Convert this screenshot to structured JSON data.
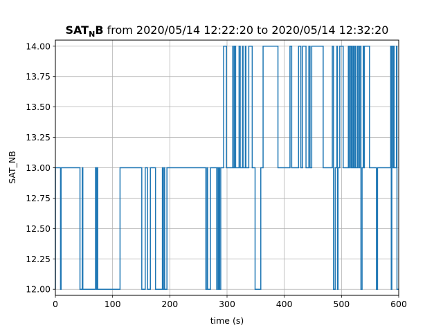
{
  "chart_data": {
    "type": "line",
    "drawstyle": "steps",
    "title": {
      "var_main": "SAT",
      "var_sub": "N",
      "var_tail": "B",
      "rest": " from 2020/05/14 12:22:20 to 2020/05/14 12:32:20"
    },
    "xlabel": "time (s)",
    "ylabel": "SAT_NB",
    "xlim": [
      0,
      600
    ],
    "ylim": [
      11.95,
      14.05
    ],
    "grid": true,
    "line_color": "#1f77b4",
    "xticks": [
      {
        "value": 0,
        "label": "0"
      },
      {
        "value": 100,
        "label": "100"
      },
      {
        "value": 200,
        "label": "200"
      },
      {
        "value": 300,
        "label": "300"
      },
      {
        "value": 400,
        "label": "400"
      },
      {
        "value": 500,
        "label": "500"
      },
      {
        "value": 600,
        "label": "600"
      }
    ],
    "yticks": [
      {
        "value": 12.0,
        "label": "12.00"
      },
      {
        "value": 12.25,
        "label": "12.25"
      },
      {
        "value": 12.5,
        "label": "12.50"
      },
      {
        "value": 12.75,
        "label": "12.75"
      },
      {
        "value": 13.0,
        "label": "13.00"
      },
      {
        "value": 13.25,
        "label": "13.25"
      },
      {
        "value": 13.5,
        "label": "13.50"
      },
      {
        "value": 13.75,
        "label": "13.75"
      },
      {
        "value": 14.0,
        "label": "14.00"
      }
    ],
    "series": [
      {
        "x": [
          0,
          9,
          10,
          43,
          47,
          48,
          70,
          72,
          73,
          74,
          108,
          113,
          151,
          157,
          161,
          166,
          175,
          187,
          188,
          190,
          191,
          194,
          195,
          263,
          265,
          266,
          267,
          271,
          282,
          283,
          285,
          286,
          287,
          289,
          294,
          299,
          310,
          311,
          313,
          315,
          321,
          323,
          327,
          328,
          332,
          333,
          338,
          344,
          348,
          349,
          359,
          360,
          362,
          363,
          389,
          410,
          413,
          425,
          429,
          432,
          438,
          443,
          445,
          448,
          456,
          458,
          468,
          484,
          486,
          489,
          492,
          493,
          494,
          497,
          498,
          503,
          512,
          514,
          515,
          517,
          518,
          519,
          521,
          522,
          524,
          525,
          528,
          530,
          532,
          534,
          536,
          538,
          539,
          540,
          541,
          542,
          549,
          550,
          561,
          563,
          564,
          586,
          587,
          588,
          590,
          591,
          592,
          596,
          597,
          600
        ],
        "y": [
          12,
          13,
          12,
          13,
          12,
          13,
          12,
          13,
          12,
          13,
          12,
          12,
          13,
          12,
          13,
          12,
          13,
          12,
          13,
          12,
          13,
          12,
          12,
          13,
          12,
          13,
          12,
          12,
          13,
          12,
          13,
          12,
          13,
          12,
          13,
          14,
          13,
          14,
          13,
          14,
          13,
          14,
          13,
          14,
          13,
          14,
          13,
          14,
          13,
          13,
          12,
          13,
          13,
          13,
          14,
          13,
          14,
          13,
          14,
          13,
          14,
          13,
          14,
          13,
          14,
          14,
          14,
          13,
          14,
          12,
          13,
          14,
          12,
          13,
          14,
          14,
          13,
          14,
          13,
          14,
          13,
          14,
          13,
          14,
          13,
          14,
          13,
          14,
          13,
          14,
          12,
          13,
          14,
          13,
          14,
          14,
          14,
          13,
          13,
          12,
          13,
          13,
          14,
          12,
          14,
          13,
          14,
          13,
          14,
          12
        ]
      }
    ]
  }
}
